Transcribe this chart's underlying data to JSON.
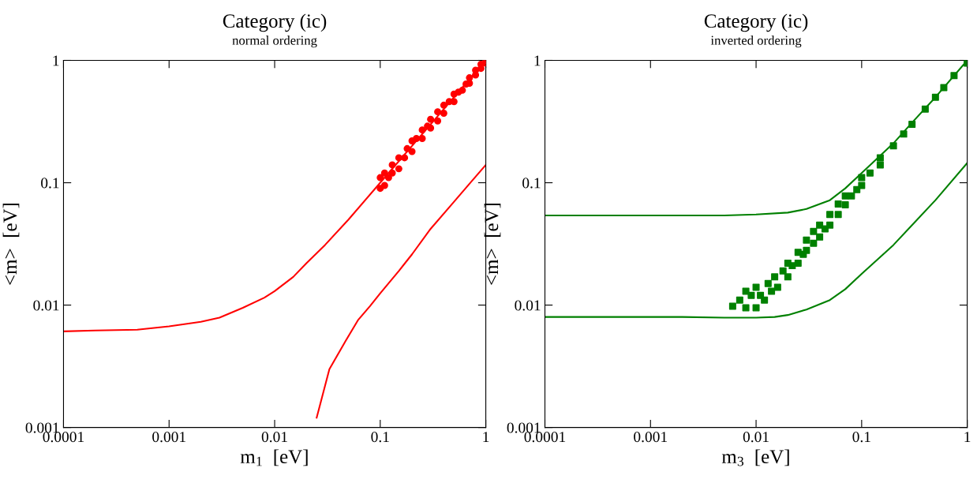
{
  "chart_data": [
    {
      "type": "line",
      "title": "Category (ic)",
      "subtitle": "normal ordering",
      "xlabel": "m$_{1}$  [eV]",
      "ylabel": "<m>  [eV]",
      "log": "xy",
      "grid": false,
      "legend": false,
      "xlim": [
        0.0001,
        1
      ],
      "ylim": [
        0.001,
        1
      ],
      "xticks": [
        0.0001,
        0.001,
        0.01,
        0.1,
        1
      ],
      "yticks": [
        0.001,
        0.01,
        0.1,
        1
      ],
      "series": [
        {
          "color": "#ff0000",
          "marker": "none",
          "x": [
            0.0001,
            0.0002,
            0.0005,
            0.001,
            0.002,
            0.003,
            0.005,
            0.008,
            0.01,
            0.015,
            0.02,
            0.03,
            0.05,
            0.1,
            0.2,
            0.3,
            0.5,
            1
          ],
          "values": [
            0.0061,
            0.0062,
            0.0063,
            0.0067,
            0.0073,
            0.0079,
            0.0095,
            0.0115,
            0.013,
            0.017,
            0.022,
            0.031,
            0.05,
            0.1,
            0.2,
            0.3,
            0.5,
            1
          ]
        },
        {
          "color": "#ff0000",
          "marker": "none",
          "x": [
            0.025,
            0.033,
            0.047,
            0.062,
            0.08,
            0.1,
            0.15,
            0.2,
            0.3,
            0.5,
            0.7,
            1
          ],
          "values": [
            0.0012,
            0.003,
            0.0051,
            0.0076,
            0.0098,
            0.0125,
            0.019,
            0.026,
            0.042,
            0.07,
            0.098,
            0.14
          ]
        },
        {
          "type": "scatter",
          "color": "#ff0000",
          "marker": "circle",
          "x": [
            0.1,
            0.1,
            0.11,
            0.11,
            0.12,
            0.13,
            0.13,
            0.15,
            0.15,
            0.17,
            0.18,
            0.2,
            0.2,
            0.22,
            0.25,
            0.25,
            0.28,
            0.3,
            0.3,
            0.35,
            0.35,
            0.4,
            0.4,
            0.45,
            0.5,
            0.5,
            0.55,
            0.6,
            0.65,
            0.7,
            0.7,
            0.8,
            0.8,
            0.9,
            0.9,
            1.0,
            1.0
          ],
          "values": [
            0.09,
            0.11,
            0.095,
            0.12,
            0.11,
            0.12,
            0.14,
            0.13,
            0.16,
            0.16,
            0.19,
            0.18,
            0.22,
            0.23,
            0.23,
            0.27,
            0.29,
            0.28,
            0.33,
            0.32,
            0.38,
            0.37,
            0.43,
            0.46,
            0.46,
            0.53,
            0.55,
            0.57,
            0.64,
            0.65,
            0.72,
            0.76,
            0.83,
            0.86,
            0.93,
            0.95,
            1.0
          ]
        }
      ]
    },
    {
      "type": "line",
      "title": "Category (ic)",
      "subtitle": "inverted ordering",
      "xlabel": "m$_{3}$  [eV]",
      "ylabel": "<m>  [eV]",
      "log": "xy",
      "grid": false,
      "legend": false,
      "xlim": [
        0.0001,
        1
      ],
      "ylim": [
        0.001,
        1
      ],
      "xticks": [
        0.0001,
        0.001,
        0.01,
        0.1,
        1
      ],
      "yticks": [
        0.001,
        0.01,
        0.1,
        1
      ],
      "series": [
        {
          "color": "#008000",
          "marker": "none",
          "x": [
            0.0001,
            0.001,
            0.005,
            0.01,
            0.02,
            0.03,
            0.05,
            0.07,
            0.1,
            0.2,
            0.3,
            0.5,
            1
          ],
          "values": [
            0.054,
            0.054,
            0.054,
            0.055,
            0.057,
            0.061,
            0.072,
            0.09,
            0.12,
            0.21,
            0.31,
            0.5,
            1
          ]
        },
        {
          "color": "#008000",
          "marker": "none",
          "x": [
            0.0001,
            0.0005,
            0.001,
            0.002,
            0.005,
            0.01,
            0.015,
            0.02,
            0.03,
            0.05,
            0.07,
            0.1,
            0.2,
            0.3,
            0.5,
            1
          ],
          "values": [
            0.008,
            0.008,
            0.008,
            0.008,
            0.0079,
            0.0079,
            0.008,
            0.0083,
            0.0092,
            0.011,
            0.0135,
            0.018,
            0.031,
            0.045,
            0.072,
            0.145
          ]
        },
        {
          "type": "scatter",
          "color": "#008000",
          "marker": "square",
          "x": [
            0.006,
            0.007,
            0.008,
            0.008,
            0.009,
            0.01,
            0.01,
            0.011,
            0.012,
            0.013,
            0.014,
            0.015,
            0.016,
            0.018,
            0.02,
            0.02,
            0.022,
            0.025,
            0.025,
            0.028,
            0.03,
            0.03,
            0.035,
            0.035,
            0.04,
            0.04,
            0.045,
            0.05,
            0.05,
            0.06,
            0.06,
            0.07,
            0.07,
            0.08,
            0.09,
            0.1,
            0.1,
            0.12,
            0.15,
            0.15,
            0.2,
            0.25,
            0.3,
            0.4,
            0.5,
            0.6,
            0.75,
            1.0
          ],
          "values": [
            0.0098,
            0.011,
            0.0095,
            0.013,
            0.012,
            0.0095,
            0.014,
            0.012,
            0.011,
            0.015,
            0.013,
            0.017,
            0.014,
            0.019,
            0.017,
            0.022,
            0.021,
            0.022,
            0.027,
            0.026,
            0.028,
            0.034,
            0.032,
            0.04,
            0.036,
            0.045,
            0.042,
            0.045,
            0.055,
            0.055,
            0.067,
            0.066,
            0.078,
            0.078,
            0.088,
            0.095,
            0.11,
            0.12,
            0.14,
            0.16,
            0.2,
            0.25,
            0.3,
            0.4,
            0.5,
            0.6,
            0.75,
            0.95
          ]
        }
      ]
    }
  ]
}
